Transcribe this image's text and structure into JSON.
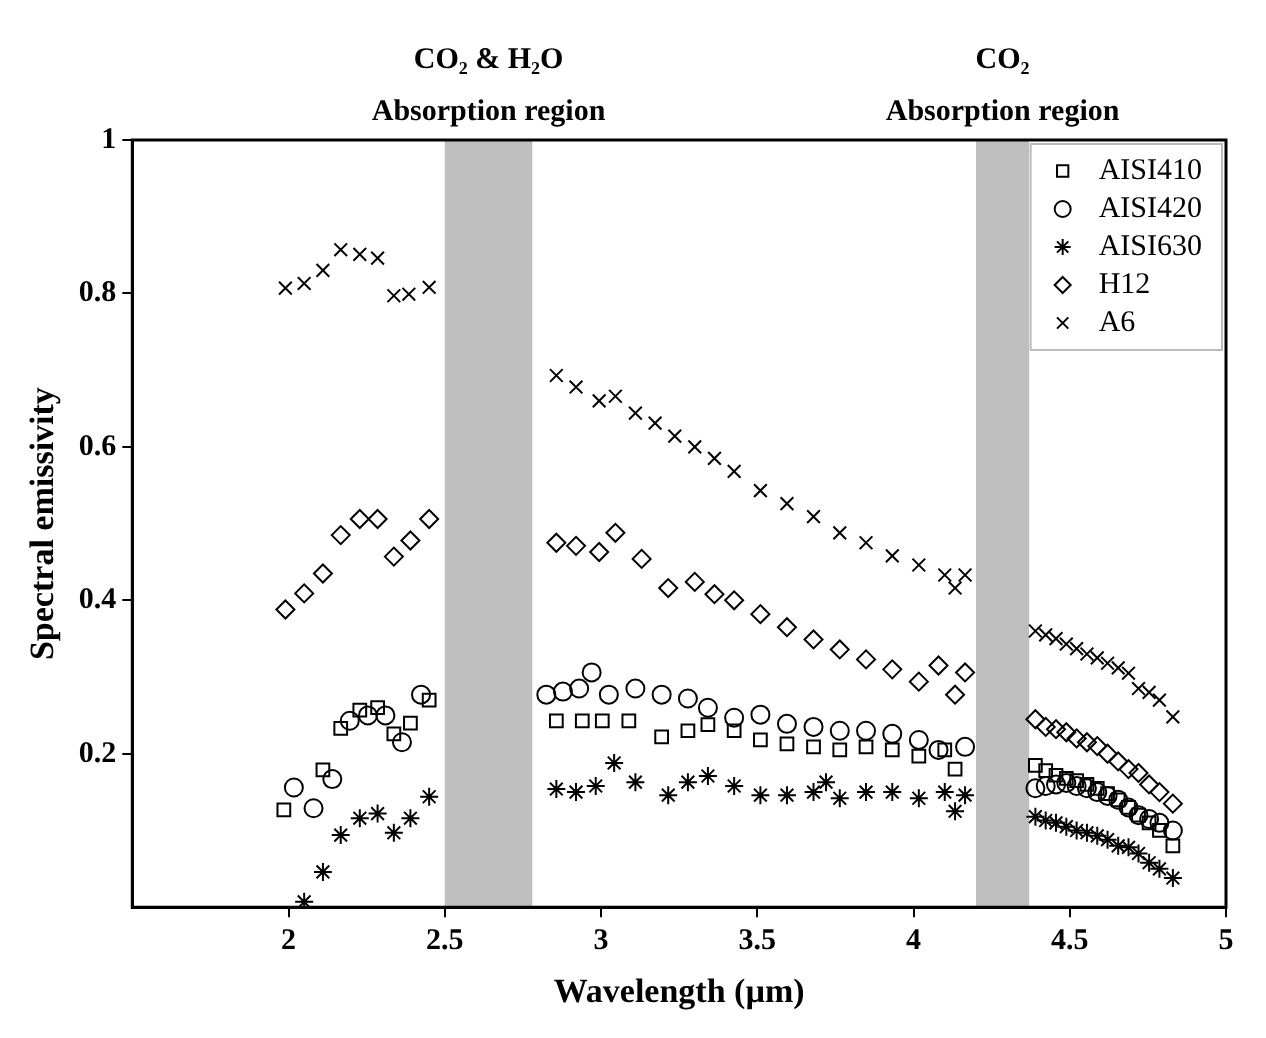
{
  "chart_data": {
    "type": "scatter",
    "xlabel": "Wavelength (µm)",
    "ylabel": "Spectral emissivity",
    "xlim": [
      1.5,
      5
    ],
    "xticks": [
      2,
      2.5,
      3,
      3.5,
      4,
      4.5,
      5
    ],
    "ylim": [
      0,
      1
    ],
    "yticks": [
      0.2,
      0.4,
      0.6,
      0.8,
      1
    ],
    "grid": false,
    "legend": "top right",
    "bands": [
      {
        "axis": "x",
        "from": 2.5,
        "to": 2.78,
        "label": "CO₂ & H₂O\nAbsorption region",
        "color": "#bfbfbf"
      },
      {
        "axis": "x",
        "from": 4.2,
        "to": 4.37,
        "label": "CO₂\nAbsorption region",
        "color": "#bfbfbf"
      }
    ],
    "series": [
      {
        "name": "AISI410",
        "color": "#000000",
        "marker": "square",
        "x": [
          1.985,
          2.11,
          2.167,
          2.228,
          2.285,
          2.337,
          2.39,
          2.45,
          2.857,
          2.94,
          3.004,
          3.089,
          3.194,
          3.278,
          3.342,
          3.426,
          3.51,
          3.595,
          3.68,
          3.764,
          3.848,
          3.932,
          4.017,
          4.1,
          4.133,
          4.39,
          4.423,
          4.456,
          4.489,
          4.522,
          4.555,
          4.588,
          4.621,
          4.655,
          4.688,
          4.72,
          4.754,
          4.787,
          4.83
        ],
        "values": [
          0.127,
          0.179,
          0.233,
          0.257,
          0.26,
          0.226,
          0.24,
          0.27,
          0.243,
          0.243,
          0.243,
          0.243,
          0.222,
          0.23,
          0.238,
          0.23,
          0.218,
          0.213,
          0.209,
          0.205,
          0.209,
          0.205,
          0.197,
          0.205,
          0.18,
          0.185,
          0.178,
          0.172,
          0.168,
          0.165,
          0.16,
          0.155,
          0.148,
          0.14,
          0.13,
          0.12,
          0.11,
          0.1,
          0.08
        ]
      },
      {
        "name": "AISI420",
        "color": "#000000",
        "marker": "circle",
        "x": [
          2.017,
          2.08,
          2.14,
          2.196,
          2.254,
          2.31,
          2.363,
          2.424,
          2.825,
          2.878,
          2.93,
          2.97,
          3.025,
          3.11,
          3.194,
          3.278,
          3.342,
          3.426,
          3.51,
          3.595,
          3.68,
          3.764,
          3.848,
          3.932,
          4.017,
          4.08,
          4.165,
          4.39,
          4.423,
          4.456,
          4.489,
          4.522,
          4.555,
          4.588,
          4.621,
          4.655,
          4.688,
          4.72,
          4.754,
          4.787,
          4.83
        ],
        "values": [
          0.156,
          0.129,
          0.167,
          0.243,
          0.25,
          0.25,
          0.215,
          0.277,
          0.277,
          0.281,
          0.285,
          0.306,
          0.277,
          0.285,
          0.277,
          0.272,
          0.26,
          0.247,
          0.251,
          0.239,
          0.235,
          0.23,
          0.23,
          0.226,
          0.218,
          0.205,
          0.209,
          0.155,
          0.158,
          0.16,
          0.162,
          0.158,
          0.155,
          0.15,
          0.145,
          0.14,
          0.13,
          0.12,
          0.115,
          0.11,
          0.1
        ]
      },
      {
        "name": "AISI630",
        "color": "#000000",
        "marker": "cross",
        "x": [
          2.05,
          2.11,
          2.167,
          2.228,
          2.285,
          2.337,
          2.39,
          2.45,
          2.857,
          2.92,
          2.983,
          3.042,
          3.11,
          3.215,
          3.278,
          3.342,
          3.426,
          3.51,
          3.595,
          3.68,
          3.72,
          3.764,
          3.848,
          3.932,
          4.017,
          4.1,
          4.133,
          4.165,
          4.39,
          4.423,
          4.456,
          4.489,
          4.522,
          4.555,
          4.588,
          4.621,
          4.655,
          4.688,
          4.72,
          4.754,
          4.787,
          4.83
        ],
        "values": [
          0.007,
          0.046,
          0.094,
          0.116,
          0.122,
          0.097,
          0.116,
          0.144,
          0.154,
          0.15,
          0.158,
          0.188,
          0.163,
          0.146,
          0.163,
          0.171,
          0.158,
          0.146,
          0.146,
          0.15,
          0.163,
          0.142,
          0.15,
          0.15,
          0.142,
          0.15,
          0.125,
          0.146,
          0.118,
          0.113,
          0.11,
          0.105,
          0.1,
          0.097,
          0.093,
          0.088,
          0.08,
          0.078,
          0.07,
          0.058,
          0.05,
          0.038
        ]
      },
      {
        "name": "H12",
        "color": "#000000",
        "marker": "diamond",
        "x": [
          1.99,
          2.05,
          2.11,
          2.167,
          2.228,
          2.285,
          2.337,
          2.39,
          2.45,
          2.857,
          2.92,
          2.994,
          3.046,
          3.13,
          3.215,
          3.3,
          3.363,
          3.426,
          3.51,
          3.595,
          3.68,
          3.764,
          3.848,
          3.932,
          4.017,
          4.08,
          4.133,
          4.165,
          4.39,
          4.423,
          4.456,
          4.489,
          4.522,
          4.555,
          4.588,
          4.621,
          4.655,
          4.688,
          4.72,
          4.754,
          4.787,
          4.83
        ],
        "values": [
          0.388,
          0.409,
          0.435,
          0.485,
          0.506,
          0.506,
          0.457,
          0.478,
          0.506,
          0.475,
          0.471,
          0.463,
          0.488,
          0.454,
          0.416,
          0.424,
          0.408,
          0.4,
          0.382,
          0.365,
          0.349,
          0.336,
          0.323,
          0.31,
          0.294,
          0.315,
          0.277,
          0.306,
          0.245,
          0.235,
          0.232,
          0.228,
          0.22,
          0.215,
          0.21,
          0.2,
          0.19,
          0.18,
          0.175,
          0.16,
          0.15,
          0.135
        ]
      },
      {
        "name": "A6",
        "color": "#000000",
        "marker": "cross",
        "x": [
          1.99,
          2.05,
          2.11,
          2.167,
          2.228,
          2.285,
          2.337,
          2.385,
          2.45,
          2.857,
          2.92,
          2.994,
          3.046,
          3.11,
          3.173,
          3.236,
          3.3,
          3.363,
          3.426,
          3.51,
          3.595,
          3.68,
          3.764,
          3.848,
          3.932,
          4.017,
          4.1,
          4.133,
          4.165,
          4.39,
          4.423,
          4.456,
          4.489,
          4.522,
          4.555,
          4.588,
          4.621,
          4.655,
          4.688,
          4.72,
          4.754,
          4.787,
          4.83
        ],
        "values": [
          0.807,
          0.813,
          0.83,
          0.857,
          0.851,
          0.846,
          0.797,
          0.799,
          0.808,
          0.693,
          0.678,
          0.66,
          0.666,
          0.644,
          0.631,
          0.614,
          0.6,
          0.585,
          0.568,
          0.543,
          0.526,
          0.509,
          0.488,
          0.475,
          0.458,
          0.446,
          0.433,
          0.416,
          0.433,
          0.36,
          0.355,
          0.35,
          0.343,
          0.337,
          0.33,
          0.325,
          0.318,
          0.312,
          0.305,
          0.285,
          0.28,
          0.27,
          0.248
        ]
      }
    ]
  }
}
